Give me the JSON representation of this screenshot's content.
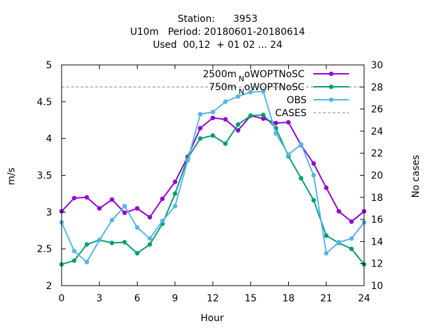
{
  "chart_data": {
    "type": "line",
    "title_lines": [
      "Station:      3953",
      "U10m   Period: 20180601-20180614",
      "Used  00,12  + 01 02 ... 24"
    ],
    "xlabel": "Hour",
    "ylabel": "m/s",
    "y2label": "No cases",
    "xlim": [
      0,
      24
    ],
    "ylim": [
      2,
      5
    ],
    "y2lim": [
      10,
      30
    ],
    "xticks": [
      0,
      3,
      6,
      9,
      12,
      15,
      18,
      21,
      24
    ],
    "yticks": [
      2,
      2.5,
      3,
      3.5,
      4,
      4.5,
      5
    ],
    "y2ticks": [
      10,
      12,
      14,
      16,
      18,
      20,
      22,
      24,
      26,
      28,
      30
    ],
    "legend_position": "top-right",
    "x": [
      0,
      1,
      2,
      3,
      4,
      5,
      6,
      7,
      8,
      9,
      10,
      11,
      12,
      13,
      14,
      15,
      16,
      17,
      18,
      19,
      20,
      21,
      22,
      23,
      24
    ],
    "series": [
      {
        "name_main": "2500m",
        "name_sub": "N",
        "name_rest": "oWOPTNoSC",
        "color": "#9400d3",
        "marker": "filled-circle",
        "values": [
          3.01,
          3.19,
          3.2,
          3.05,
          3.17,
          2.99,
          3.05,
          2.93,
          3.18,
          3.41,
          3.75,
          4.14,
          4.28,
          4.26,
          4.11,
          4.31,
          4.27,
          4.21,
          4.22,
          3.91,
          3.66,
          3.33,
          3.01,
          2.87,
          3.01
        ]
      },
      {
        "name_main": "750m",
        "name_sub": "N",
        "name_rest": "oWOPTNoSC",
        "color": "#009e73",
        "marker": "filled-circle",
        "values": [
          2.29,
          2.34,
          2.56,
          2.62,
          2.58,
          2.59,
          2.44,
          2.56,
          2.84,
          3.25,
          3.73,
          4.0,
          4.04,
          3.93,
          4.19,
          4.31,
          4.32,
          4.14,
          3.76,
          3.46,
          3.16,
          2.68,
          2.58,
          2.5,
          2.29
        ]
      },
      {
        "name_main": "OBS",
        "name_sub": "",
        "name_rest": "",
        "color": "#56b4e9",
        "marker": "filled-circle",
        "values": [
          2.86,
          2.47,
          2.32,
          2.62,
          2.89,
          3.08,
          2.79,
          2.64,
          2.88,
          3.08,
          3.7,
          4.33,
          4.36,
          4.5,
          4.57,
          4.63,
          4.64,
          4.07,
          3.78,
          3.92,
          3.5,
          2.44,
          2.59,
          2.64,
          2.86
        ]
      }
    ],
    "cases": {
      "name": "CASES",
      "value": 28,
      "color": "#808080",
      "axis": "y2"
    }
  }
}
